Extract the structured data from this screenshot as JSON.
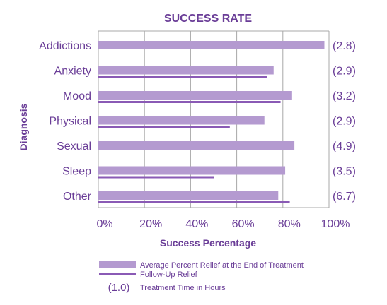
{
  "chart_data": {
    "type": "bar",
    "orientation": "horizontal",
    "title": "SUCCESS RATE",
    "xlabel": "Success Percentage",
    "ylabel": "Diagnosis",
    "xlim": [
      0,
      100
    ],
    "x_ticks": [
      "0%",
      "20%",
      "40%",
      "60%",
      "80%",
      "100%"
    ],
    "x_tick_values": [
      0,
      20,
      40,
      60,
      80,
      100
    ],
    "grid": "vertical",
    "categories": [
      "Addictions",
      "Anxiety",
      "Mood",
      "Physical",
      "Sexual",
      "Sleep",
      "Other"
    ],
    "series": [
      {
        "name": "Average Percent Relief at the End of Treatment",
        "style": "bar",
        "color": "#b49ad0",
        "values": [
          98,
          76,
          84,
          72,
          85,
          81,
          78
        ]
      },
      {
        "name": "Follow-Up Relief",
        "style": "line",
        "color": "#8a5ab5",
        "values": [
          null,
          73,
          79,
          57,
          null,
          50,
          83
        ]
      }
    ],
    "treatment_hours_label": "Treatment Time in Hours",
    "treatment_hours": [
      "(2.8)",
      "(2.9)",
      "(3.2)",
      "(2.9)",
      "(4.9)",
      "(3.5)",
      "(6.7)"
    ],
    "legend": {
      "placement": "bottom",
      "key_example": "(1.0)"
    }
  }
}
